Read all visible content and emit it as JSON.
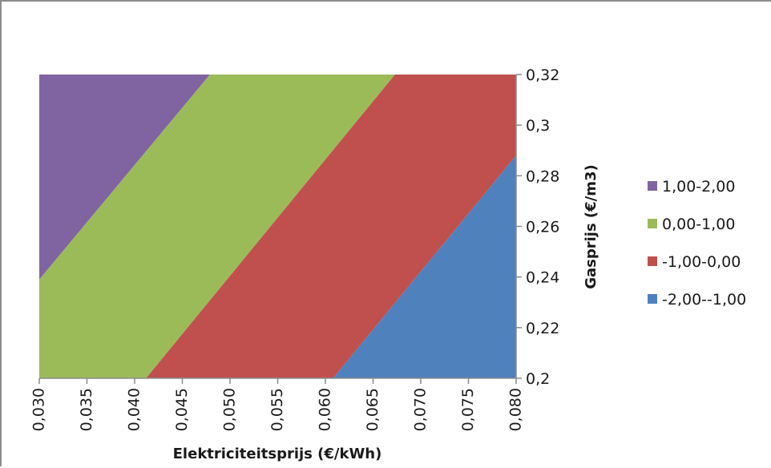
{
  "chart_data": {
    "type": "area",
    "title": "",
    "xlabel": "Elektriciteitsprijs (€/kWh)",
    "ylabel": "Gasprijs (€/m3)",
    "xlim": [
      0.03,
      0.08
    ],
    "ylim": [
      0.2,
      0.32
    ],
    "x_ticks": [
      "0,030",
      "0,035",
      "0,040",
      "0,045",
      "0,050",
      "0,055",
      "0,060",
      "0,065",
      "0,070",
      "0,075",
      "0,080"
    ],
    "x_tick_values": [
      0.03,
      0.035,
      0.04,
      0.045,
      0.05,
      0.055,
      0.06,
      0.065,
      0.07,
      0.075,
      0.08
    ],
    "y_ticks": [
      "0,2",
      "0,22",
      "0,24",
      "0,26",
      "0,28",
      "0,3",
      "0,32"
    ],
    "y_tick_values": [
      0.2,
      0.22,
      0.24,
      0.26,
      0.28,
      0.3,
      0.32
    ],
    "y_axis_position": "right",
    "legend_position": "right",
    "grid": false,
    "series": [
      {
        "name": "1,00-2,00",
        "color": "#8064a2",
        "polygon": [
          [
            0.03,
            0.239
          ],
          [
            0.03,
            0.32
          ],
          [
            0.0479,
            0.32
          ]
        ]
      },
      {
        "name": "0,00-1,00",
        "color": "#9bbb59",
        "polygon": [
          [
            0.03,
            0.2
          ],
          [
            0.03,
            0.239
          ],
          [
            0.0479,
            0.32
          ],
          [
            0.0673,
            0.32
          ],
          [
            0.0412,
            0.2
          ]
        ]
      },
      {
        "name": "-1,00-0,00",
        "color": "#c0504d",
        "polygon": [
          [
            0.0412,
            0.2
          ],
          [
            0.0673,
            0.32
          ],
          [
            0.08,
            0.32
          ],
          [
            0.08,
            0.288
          ],
          [
            0.0608,
            0.2
          ]
        ]
      },
      {
        "name": "-2,00--1,00",
        "color": "#4f81bd",
        "polygon": [
          [
            0.0608,
            0.2
          ],
          [
            0.08,
            0.288
          ],
          [
            0.08,
            0.2
          ]
        ]
      }
    ]
  }
}
